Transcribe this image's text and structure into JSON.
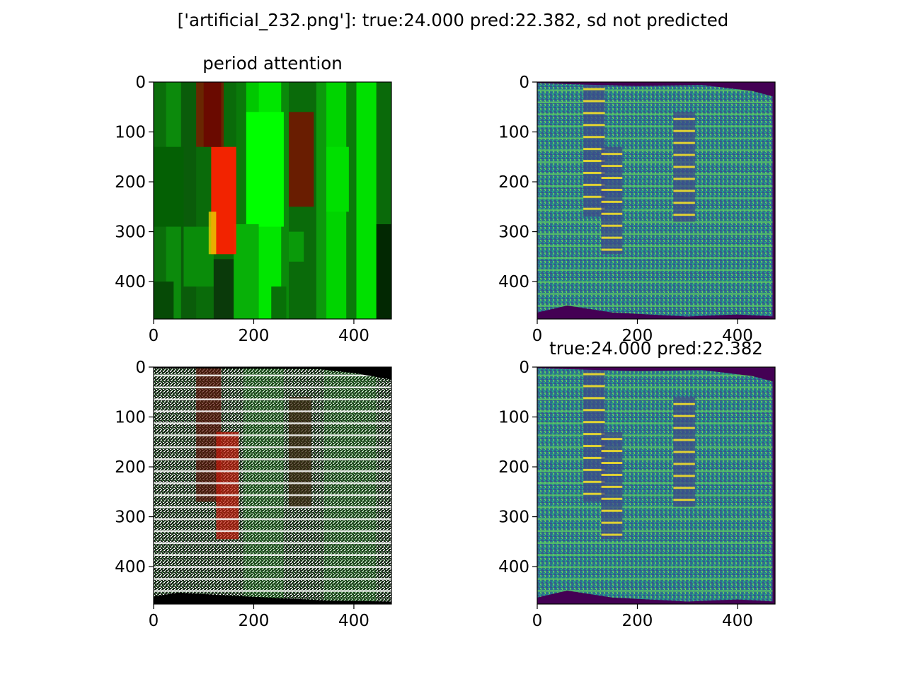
{
  "figure": {
    "suptitle": "['artificial_232.png']: true:24.000 pred:22.382, sd not predicted"
  },
  "colors": {
    "viridis_dark": "#440154",
    "viridis_teal": "#21918c",
    "viridis_green": "#5ec962",
    "viridis_yellow": "#fde725",
    "attention_red": "#ff1a00",
    "attention_green": "#00e600"
  },
  "chart_data": [
    {
      "type": "heatmap",
      "name": "period-attention",
      "title": "period attention",
      "xlabel": "",
      "ylabel": "",
      "xticks": [
        0,
        200,
        400
      ],
      "yticks": [
        0,
        100,
        200,
        300,
        400
      ],
      "xlim": [
        0,
        475
      ],
      "ylim": [
        475,
        0
      ],
      "colormap": "red-green attention overlay",
      "regions": [
        {
          "label": "red band A",
          "x": [
            115,
            165
          ],
          "y": [
            130,
            345
          ],
          "intensity": "high"
        },
        {
          "label": "dark red band A",
          "x": [
            85,
            140
          ],
          "y": [
            0,
            130
          ],
          "intensity": "medium"
        },
        {
          "label": "dark red band B",
          "x": [
            270,
            320
          ],
          "y": [
            60,
            250
          ],
          "intensity": "medium"
        }
      ]
    },
    {
      "type": "heatmap",
      "name": "input-image-top",
      "title": "",
      "xticks": [
        0,
        200,
        400
      ],
      "yticks": [
        0,
        100,
        200,
        300,
        400
      ],
      "xlim": [
        0,
        475
      ],
      "ylim": [
        475,
        0
      ],
      "colormap": "viridis"
    },
    {
      "type": "heatmap",
      "name": "attention-overlay",
      "title": "",
      "xticks": [
        0,
        200,
        400
      ],
      "yticks": [
        0,
        100,
        200,
        300,
        400
      ],
      "xlim": [
        0,
        475
      ],
      "ylim": [
        475,
        0
      ],
      "colormap": "overlay"
    },
    {
      "type": "heatmap",
      "name": "input-image-bottom",
      "title": "true:24.000 pred:22.382",
      "xticks": [
        0,
        200,
        400
      ],
      "yticks": [
        0,
        100,
        200,
        300,
        400
      ],
      "xlim": [
        0,
        475
      ],
      "ylim": [
        475,
        0
      ],
      "colormap": "viridis"
    }
  ]
}
